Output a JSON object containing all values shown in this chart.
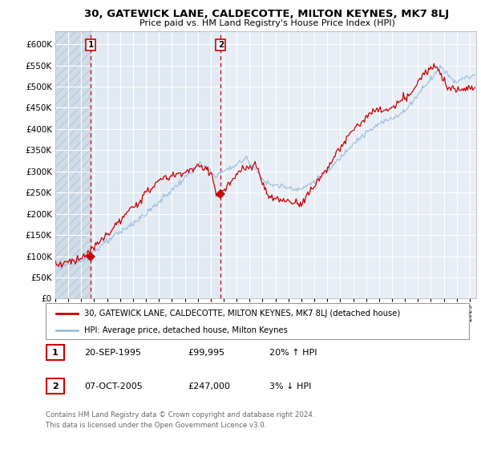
{
  "title": "30, GATEWICK LANE, CALDECOTTE, MILTON KEYNES, MK7 8LJ",
  "subtitle": "Price paid vs. HM Land Registry's House Price Index (HPI)",
  "legend_label_red": "30, GATEWICK LANE, CALDECOTTE, MILTON KEYNES, MK7 8LJ (detached house)",
  "legend_label_blue": "HPI: Average price, detached house, Milton Keynes",
  "annotation1_label": "1",
  "annotation1_date": "20-SEP-1995",
  "annotation1_price": "£99,995",
  "annotation1_hpi": "20% ↑ HPI",
  "annotation2_label": "2",
  "annotation2_date": "07-OCT-2005",
  "annotation2_price": "£247,000",
  "annotation2_hpi": "3% ↓ HPI",
  "footnote1": "Contains HM Land Registry data © Crown copyright and database right 2024.",
  "footnote2": "This data is licensed under the Open Government Licence v3.0.",
  "ylim": [
    0,
    630000
  ],
  "yticks": [
    0,
    50000,
    100000,
    150000,
    200000,
    250000,
    300000,
    350000,
    400000,
    450000,
    500000,
    550000,
    600000
  ],
  "bg_color": "#e8eef5",
  "grid_color": "#ffffff",
  "red_color": "#cc0000",
  "blue_color": "#99bbdd",
  "sale1_x": 1995.72,
  "sale1_y": 99995,
  "sale2_x": 2005.77,
  "sale2_y": 247000,
  "xmin": 1993.0,
  "xmax": 2025.5
}
